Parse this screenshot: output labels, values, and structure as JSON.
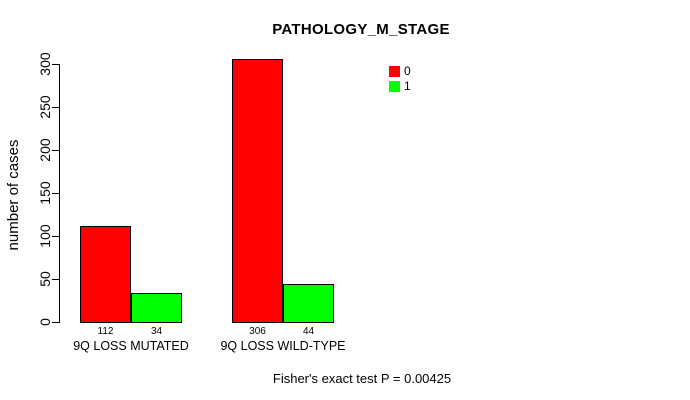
{
  "chart_data": {
    "type": "bar",
    "title": "PATHOLOGY_M_STAGE",
    "ylabel": "number of cases",
    "xlabel": "",
    "categories": [
      "9Q LOSS MUTATED",
      "9Q LOSS WILD-TYPE"
    ],
    "series": [
      {
        "name": "0",
        "color": "#FF0000",
        "values": [
          112,
          306
        ]
      },
      {
        "name": "1",
        "color": "#00FF00",
        "values": [
          34,
          44
        ]
      }
    ],
    "value_labels": [
      [
        "112",
        "34"
      ],
      [
        "306",
        "44"
      ]
    ],
    "yticks": [
      0,
      50,
      100,
      150,
      200,
      250,
      300
    ],
    "ylim": [
      0,
      300
    ],
    "grid": false,
    "legend_position": "top-right",
    "legend": [
      {
        "label": "0",
        "color": "#FF0000"
      },
      {
        "label": "1",
        "color": "#00FF00"
      }
    ],
    "annotation": "Fisher's exact test P = 0.00425",
    "bar_border_color": "#000000",
    "axis_color": "#000000"
  }
}
